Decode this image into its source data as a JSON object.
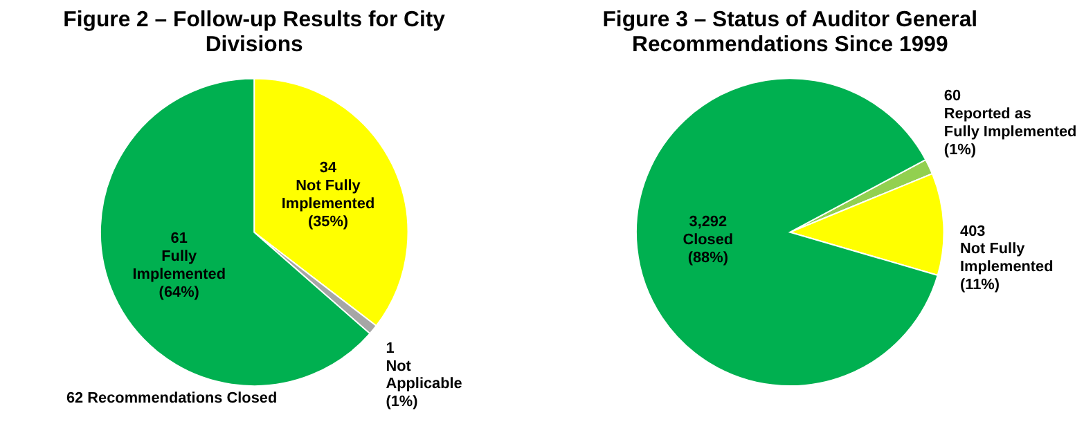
{
  "chart_data": [
    {
      "type": "pie",
      "title": "Figure 2 – Follow-up Results for City Divisions",
      "categories": [
        "Not Fully\nImplemented",
        "Not\nApplicable",
        "Fully\nImplemented"
      ],
      "values": [
        34,
        1,
        61
      ],
      "colors": [
        "#ffff00",
        "#a6a6a6",
        "#00b050"
      ],
      "data_labels": true,
      "annotations": [
        {
          "text": "(35%)",
          "x": "Not Fully\nImplemented"
        },
        {
          "text": "(1%)",
          "x": "Not\nApplicable"
        },
        {
          "text": "(64%)",
          "x": "Fully\nImplemented"
        },
        "62 Recommendations Closed"
      ],
      "legend": false
    },
    {
      "type": "pie",
      "title": "Figure 3 – Status of Auditor General Recommendations Since 1999",
      "categories": [
        "Reported as\nFully Implemented",
        "Not Fully\nImplemented",
        "Closed"
      ],
      "values": [
        60,
        403,
        3292
      ],
      "colors": [
        "#92d050",
        "#ffff00",
        "#00b050"
      ],
      "value_labels": [
        "60",
        "403",
        "3,292"
      ],
      "annotations": [
        {
          "text": "(1%)",
          "x": "Reported as\nFully Implemented"
        },
        {
          "text": "(11%)",
          "x": "Not Fully\nImplemented"
        },
        {
          "text": "(88%)",
          "x": "Closed"
        }
      ],
      "legend": false
    }
  ]
}
